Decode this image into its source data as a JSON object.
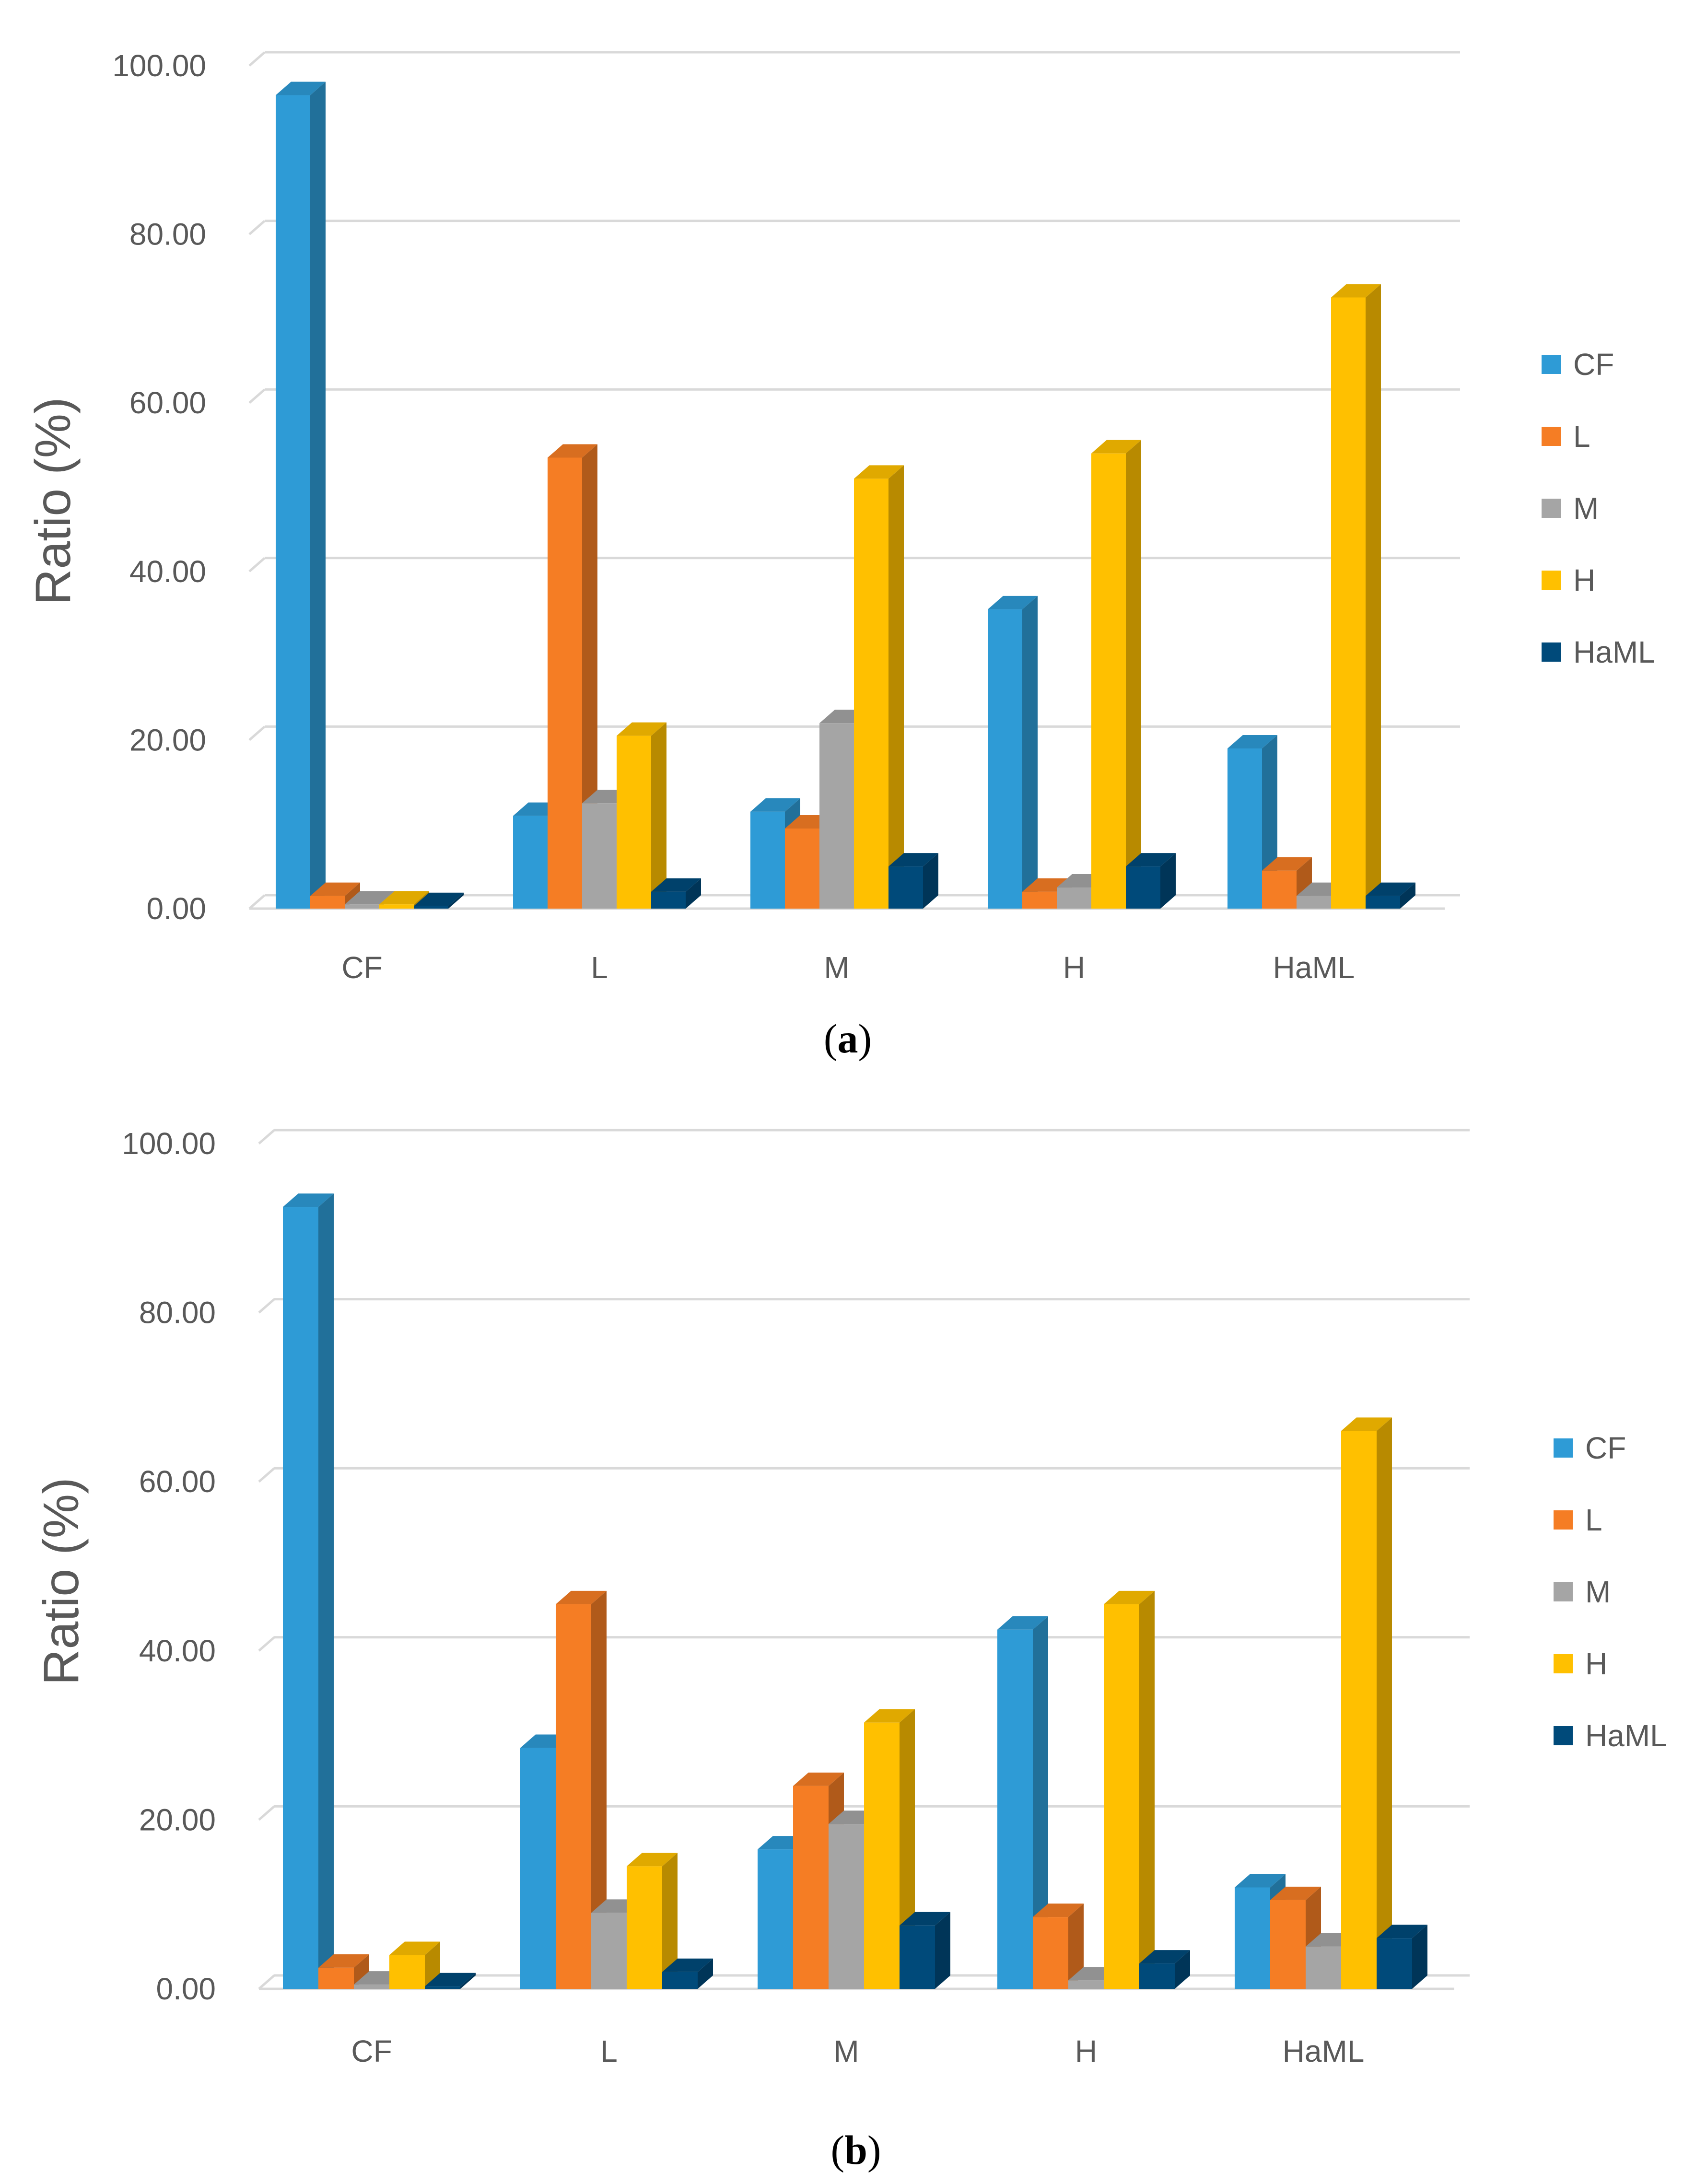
{
  "chart_data": [
    {
      "type": "bar",
      "panel_label": "a",
      "categories": [
        "CF",
        "L",
        "M",
        "H",
        "HaML"
      ],
      "series": [
        {
          "name": "CF",
          "values": [
            96.5,
            11.0,
            11.5,
            35.5,
            19.0
          ]
        },
        {
          "name": "L",
          "values": [
            1.5,
            53.5,
            9.5,
            2.0,
            4.5
          ]
        },
        {
          "name": "M",
          "values": [
            0.5,
            12.5,
            22.0,
            2.5,
            1.5
          ]
        },
        {
          "name": "H",
          "values": [
            0.5,
            20.5,
            51.0,
            54.0,
            72.5
          ]
        },
        {
          "name": "HaML",
          "values": [
            0.3,
            2.0,
            5.0,
            5.0,
            1.5
          ]
        }
      ],
      "ylabel": "Ratio (%)",
      "xlabel": "",
      "ylim": [
        0,
        100
      ],
      "yticks": [
        "0.00",
        "20.00",
        "40.00",
        "60.00",
        "80.00",
        "100.00"
      ],
      "legend": "right",
      "grid": true
    },
    {
      "type": "bar",
      "panel_label": "b",
      "categories": [
        "CF",
        "L",
        "M",
        "H",
        "HaML"
      ],
      "series": [
        {
          "name": "CF",
          "values": [
            92.5,
            28.5,
            16.5,
            42.5,
            12.0
          ]
        },
        {
          "name": "L",
          "values": [
            2.5,
            45.5,
            24.0,
            8.5,
            10.5
          ]
        },
        {
          "name": "M",
          "values": [
            0.5,
            9.0,
            19.5,
            1.0,
            5.0
          ]
        },
        {
          "name": "H",
          "values": [
            4.0,
            14.5,
            31.5,
            45.5,
            66.0
          ]
        },
        {
          "name": "HaML",
          "values": [
            0.3,
            2.0,
            7.5,
            3.0,
            6.0
          ]
        }
      ],
      "ylabel": "Ratio (%)",
      "xlabel": "",
      "ylim": [
        0,
        100
      ],
      "yticks": [
        "0.00",
        "20.00",
        "40.00",
        "60.00",
        "80.00",
        "100.00"
      ],
      "legend": "right",
      "grid": true
    }
  ],
  "colors": {
    "CF": "#2e9bd6",
    "L": "#f57d24",
    "M": "#a5a5a5",
    "H": "#ffc000",
    "HaML": "#004a7a"
  }
}
